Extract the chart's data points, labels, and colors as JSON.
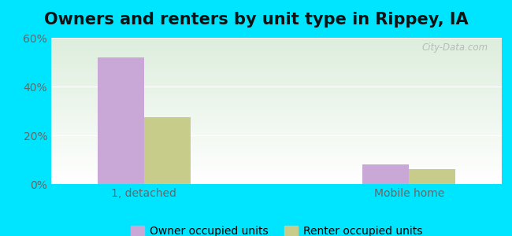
{
  "title": "Owners and renters by unit type in Rippey, IA",
  "categories": [
    "1, detached",
    "Mobile home"
  ],
  "owner_values": [
    52.0,
    8.0
  ],
  "renter_values": [
    27.5,
    6.0
  ],
  "owner_color": "#c9a8d8",
  "renter_color": "#c8cc8a",
  "ylim": [
    0,
    60
  ],
  "yticks": [
    0,
    20,
    40,
    60
  ],
  "ytick_labels": [
    "0%",
    "20%",
    "40%",
    "60%"
  ],
  "background_outer": "#00e5ff",
  "background_inner_top": "#ddeedd",
  "background_inner_bottom": "#ffffff",
  "bar_width": 0.35,
  "group_positions": [
    1.0,
    3.0
  ],
  "xlim": [
    0.3,
    3.7
  ],
  "legend_labels": [
    "Owner occupied units",
    "Renter occupied units"
  ],
  "watermark": "City-Data.com",
  "title_fontsize": 15,
  "axis_label_fontsize": 10,
  "legend_fontsize": 10
}
